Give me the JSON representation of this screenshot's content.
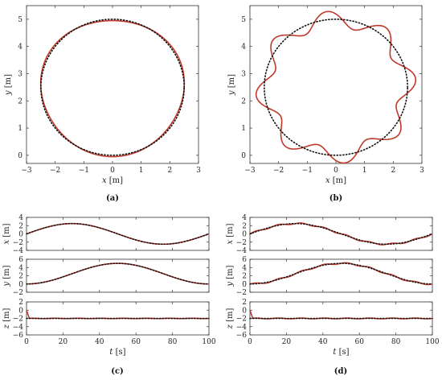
{
  "chart_data": [
    {
      "panel": "(a)",
      "type": "line",
      "xlabel": "x [m]",
      "ylabel": "y [m]",
      "xlim": [
        -3,
        3
      ],
      "ylim": [
        -0.3,
        5.5
      ],
      "xticks": [
        -3,
        -2,
        -1,
        0,
        1,
        2,
        3
      ],
      "yticks": [
        0,
        1,
        2,
        3,
        4,
        5
      ],
      "series": [
        {
          "style": "solid",
          "color": "#c0392b",
          "shape": "ellipse",
          "center": [
            0,
            2.5
          ],
          "radii": [
            2.5,
            2.5
          ],
          "ripple": 0.02,
          "lobes": 0
        },
        {
          "style": "dotted",
          "color": "#111111",
          "shape": "ellipse",
          "center": [
            0,
            2.5
          ],
          "radii": [
            2.5,
            2.5
          ],
          "ripple": 0,
          "lobes": 0
        }
      ]
    },
    {
      "panel": "(b)",
      "type": "line",
      "xlabel": "x [m]",
      "ylabel": "y [m]",
      "xlim": [
        -3,
        3
      ],
      "ylim": [
        -0.3,
        5.5
      ],
      "xticks": [
        -3,
        -2,
        -1,
        0,
        1,
        2,
        3
      ],
      "yticks": [
        0,
        1,
        2,
        3,
        4,
        5
      ],
      "series": [
        {
          "style": "solid",
          "color": "#c0392b",
          "shape": "ellipse",
          "center": [
            0,
            2.5
          ],
          "radii": [
            2.5,
            2.5
          ],
          "ripple": 0.12,
          "lobes": 8
        },
        {
          "style": "dotted",
          "color": "#111111",
          "shape": "ellipse",
          "center": [
            0,
            2.5
          ],
          "radii": [
            2.5,
            2.5
          ],
          "ripple": 0,
          "lobes": 0
        }
      ]
    },
    {
      "panel": "(c)",
      "type": "line",
      "xlabel": "t [s]",
      "xlim": [
        0,
        100
      ],
      "xticks": [
        0,
        20,
        40,
        60,
        80,
        100
      ],
      "subplots": [
        {
          "ylabel": "x [m]",
          "ylim": [
            -4,
            4
          ],
          "yticks": [
            -4,
            -2,
            0,
            2,
            4
          ],
          "signal": "sin",
          "amplitude": 2.5,
          "offset": 0,
          "period": 100,
          "ripple": 0
        },
        {
          "ylabel": "y [m]",
          "ylim": [
            -2,
            6
          ],
          "yticks": [
            -2,
            0,
            2,
            4,
            6
          ],
          "signal": "1-cos",
          "amplitude": 2.5,
          "offset": 2.5,
          "period": 100,
          "ripple": 0
        },
        {
          "ylabel": "z [m]",
          "ylim": [
            -6,
            2
          ],
          "yticks": [
            -6,
            -4,
            -2,
            0,
            2
          ],
          "signal": "const",
          "value": -2,
          "spike_start": 0,
          "ripple": 0.05
        }
      ]
    },
    {
      "panel": "(d)",
      "type": "line",
      "xlabel": "t [s]",
      "xlim": [
        0,
        100
      ],
      "xticks": [
        0,
        20,
        40,
        60,
        80,
        100
      ],
      "subplots": [
        {
          "ylabel": "x [m]",
          "ylim": [
            -4,
            4
          ],
          "yticks": [
            -4,
            -2,
            0,
            2,
            4
          ],
          "signal": "sin",
          "amplitude": 2.5,
          "offset": 0,
          "period": 100,
          "ripple": 0.18
        },
        {
          "ylabel": "y [m]",
          "ylim": [
            -2,
            6
          ],
          "yticks": [
            -2,
            0,
            2,
            4,
            6
          ],
          "signal": "1-cos",
          "amplitude": 2.5,
          "offset": 2.5,
          "period": 100,
          "ripple": 0.18
        },
        {
          "ylabel": "z [m]",
          "ylim": [
            -6,
            2
          ],
          "yticks": [
            -6,
            -4,
            -2,
            0,
            2
          ],
          "signal": "const",
          "value": -2,
          "spike_start": 0,
          "ripple": 0.1
        }
      ]
    }
  ]
}
